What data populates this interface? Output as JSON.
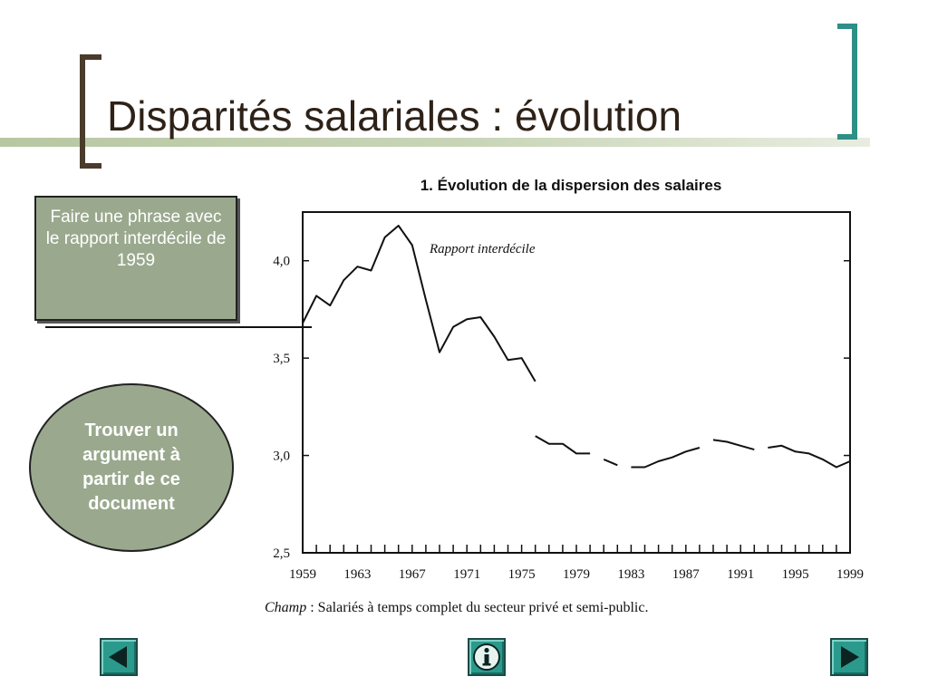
{
  "slide": {
    "title": "Disparités salariales : évolution"
  },
  "callouts": {
    "box_text": "Faire une phrase avec le rapport interdécile de 1959",
    "oval_text": "Trouver un argument à partir de ce document"
  },
  "navigation": {
    "prev_icon": "arrow-left-icon",
    "info_icon": "info-icon",
    "next_icon": "arrow-right-icon"
  },
  "colors": {
    "accent_teal": "#2b9a8d",
    "title_text": "#2e2218",
    "callout_fill": "#9aa98e"
  },
  "chart_data": {
    "type": "line",
    "title": "1. Évolution de la dispersion des salaires",
    "series_label": "Rapport interdécile",
    "footnote_label": "Champ",
    "footnote_text": " : Salariés à temps complet du secteur privé et semi-public.",
    "xlim": [
      1959,
      1999
    ],
    "ylim": [
      2.5,
      4.25
    ],
    "y_ticks": [
      2.5,
      3.0,
      3.5,
      4.0
    ],
    "y_tick_labels": [
      "2,5",
      "3,0",
      "3,5",
      "4,0"
    ],
    "x_ticks": [
      1959,
      1963,
      1967,
      1971,
      1975,
      1979,
      1983,
      1987,
      1991,
      1995,
      1999
    ],
    "x_tick_labels": [
      "1959",
      "1963",
      "1967",
      "1971",
      "1975",
      "1979",
      "1983",
      "1987",
      "1991",
      "1995",
      "1999"
    ],
    "segments": [
      {
        "x": [
          1959,
          1960,
          1961,
          1962,
          1963,
          1964,
          1965,
          1966,
          1967,
          1968,
          1969,
          1970,
          1971,
          1972,
          1973,
          1974,
          1975,
          1976
        ],
        "y": [
          3.68,
          3.82,
          3.77,
          3.9,
          3.97,
          3.95,
          4.12,
          4.18,
          4.08,
          3.8,
          3.53,
          3.66,
          3.7,
          3.71,
          3.61,
          3.49,
          3.5,
          3.38
        ]
      },
      {
        "x": [
          1976,
          1977,
          1978,
          1979,
          1980
        ],
        "y": [
          3.1,
          3.06,
          3.06,
          3.01,
          3.01
        ]
      },
      {
        "x": [
          1981,
          1982
        ],
        "y": [
          2.98,
          2.95
        ]
      },
      {
        "x": [
          1983,
          1984,
          1985,
          1986,
          1987,
          1988
        ],
        "y": [
          2.94,
          2.94,
          2.97,
          2.99,
          3.02,
          3.04
        ]
      },
      {
        "x": [
          1989,
          1990,
          1991,
          1992
        ],
        "y": [
          3.08,
          3.07,
          3.05,
          3.03
        ]
      },
      {
        "x": [
          1993,
          1994,
          1995,
          1996,
          1997,
          1998,
          1999
        ],
        "y": [
          3.04,
          3.05,
          3.02,
          3.01,
          2.98,
          2.94,
          2.97
        ]
      }
    ],
    "grid": false
  }
}
